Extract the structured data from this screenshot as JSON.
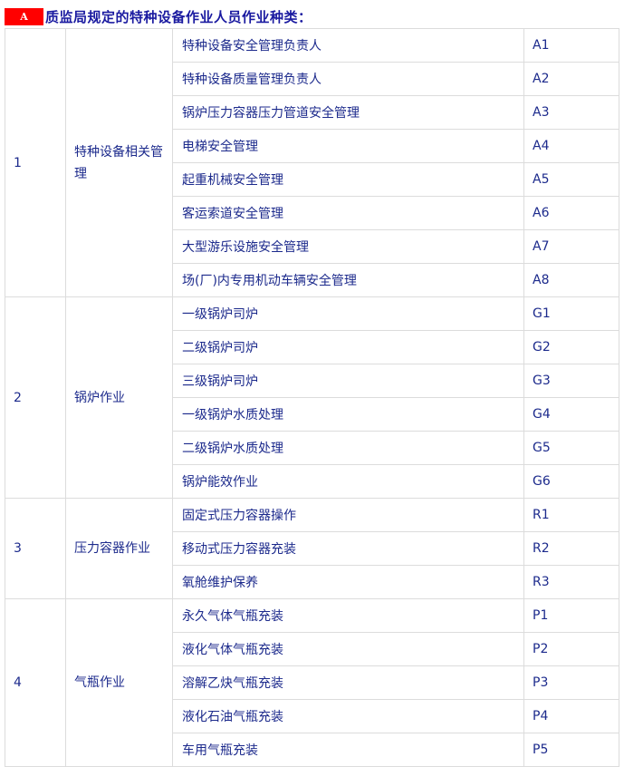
{
  "heading": {
    "badge": "A",
    "title": "质监局规定的特种设备作业人员作业种类："
  },
  "groups": [
    {
      "no": "1",
      "category": "特种设备相关管理",
      "items": [
        [
          "特种设备安全管理负责人",
          "A1"
        ],
        [
          "特种设备质量管理负责人",
          "A2"
        ],
        [
          "锅炉压力容器压力管道安全管理",
          "A3"
        ],
        [
          "电梯安全管理",
          "A4"
        ],
        [
          "起重机械安全管理",
          "A5"
        ],
        [
          "客运索道安全管理",
          "A6"
        ],
        [
          "大型游乐设施安全管理",
          "A7"
        ],
        [
          "场(厂)内专用机动车辆安全管理",
          "A8"
        ]
      ]
    },
    {
      "no": "2",
      "category": "锅炉作业",
      "items": [
        [
          "一级锅炉司炉",
          "G1"
        ],
        [
          "二级锅炉司炉",
          "G2"
        ],
        [
          "三级锅炉司炉",
          "G3"
        ],
        [
          "一级锅炉水质处理",
          "G4"
        ],
        [
          "二级锅炉水质处理",
          "G5"
        ],
        [
          "锅炉能效作业",
          "G6"
        ]
      ]
    },
    {
      "no": "3",
      "category": "压力容器作业",
      "items": [
        [
          "固定式压力容器操作",
          "R1"
        ],
        [
          "移动式压力容器充装",
          "R2"
        ],
        [
          "氧舱维护保养",
          "R3"
        ]
      ]
    },
    {
      "no": "4",
      "category": "气瓶作业",
      "items": [
        [
          "永久气体气瓶充装",
          "P1"
        ],
        [
          "液化气体气瓶充装",
          "P2"
        ],
        [
          "溶解乙炔气瓶充装",
          "P3"
        ],
        [
          "液化石油气瓶充装",
          "P4"
        ],
        [
          "车用气瓶充装",
          "P5"
        ]
      ]
    }
  ],
  "colors": {
    "badge": "#ff0000",
    "text": "#1c2a8c",
    "border": "#dcdcdc"
  }
}
